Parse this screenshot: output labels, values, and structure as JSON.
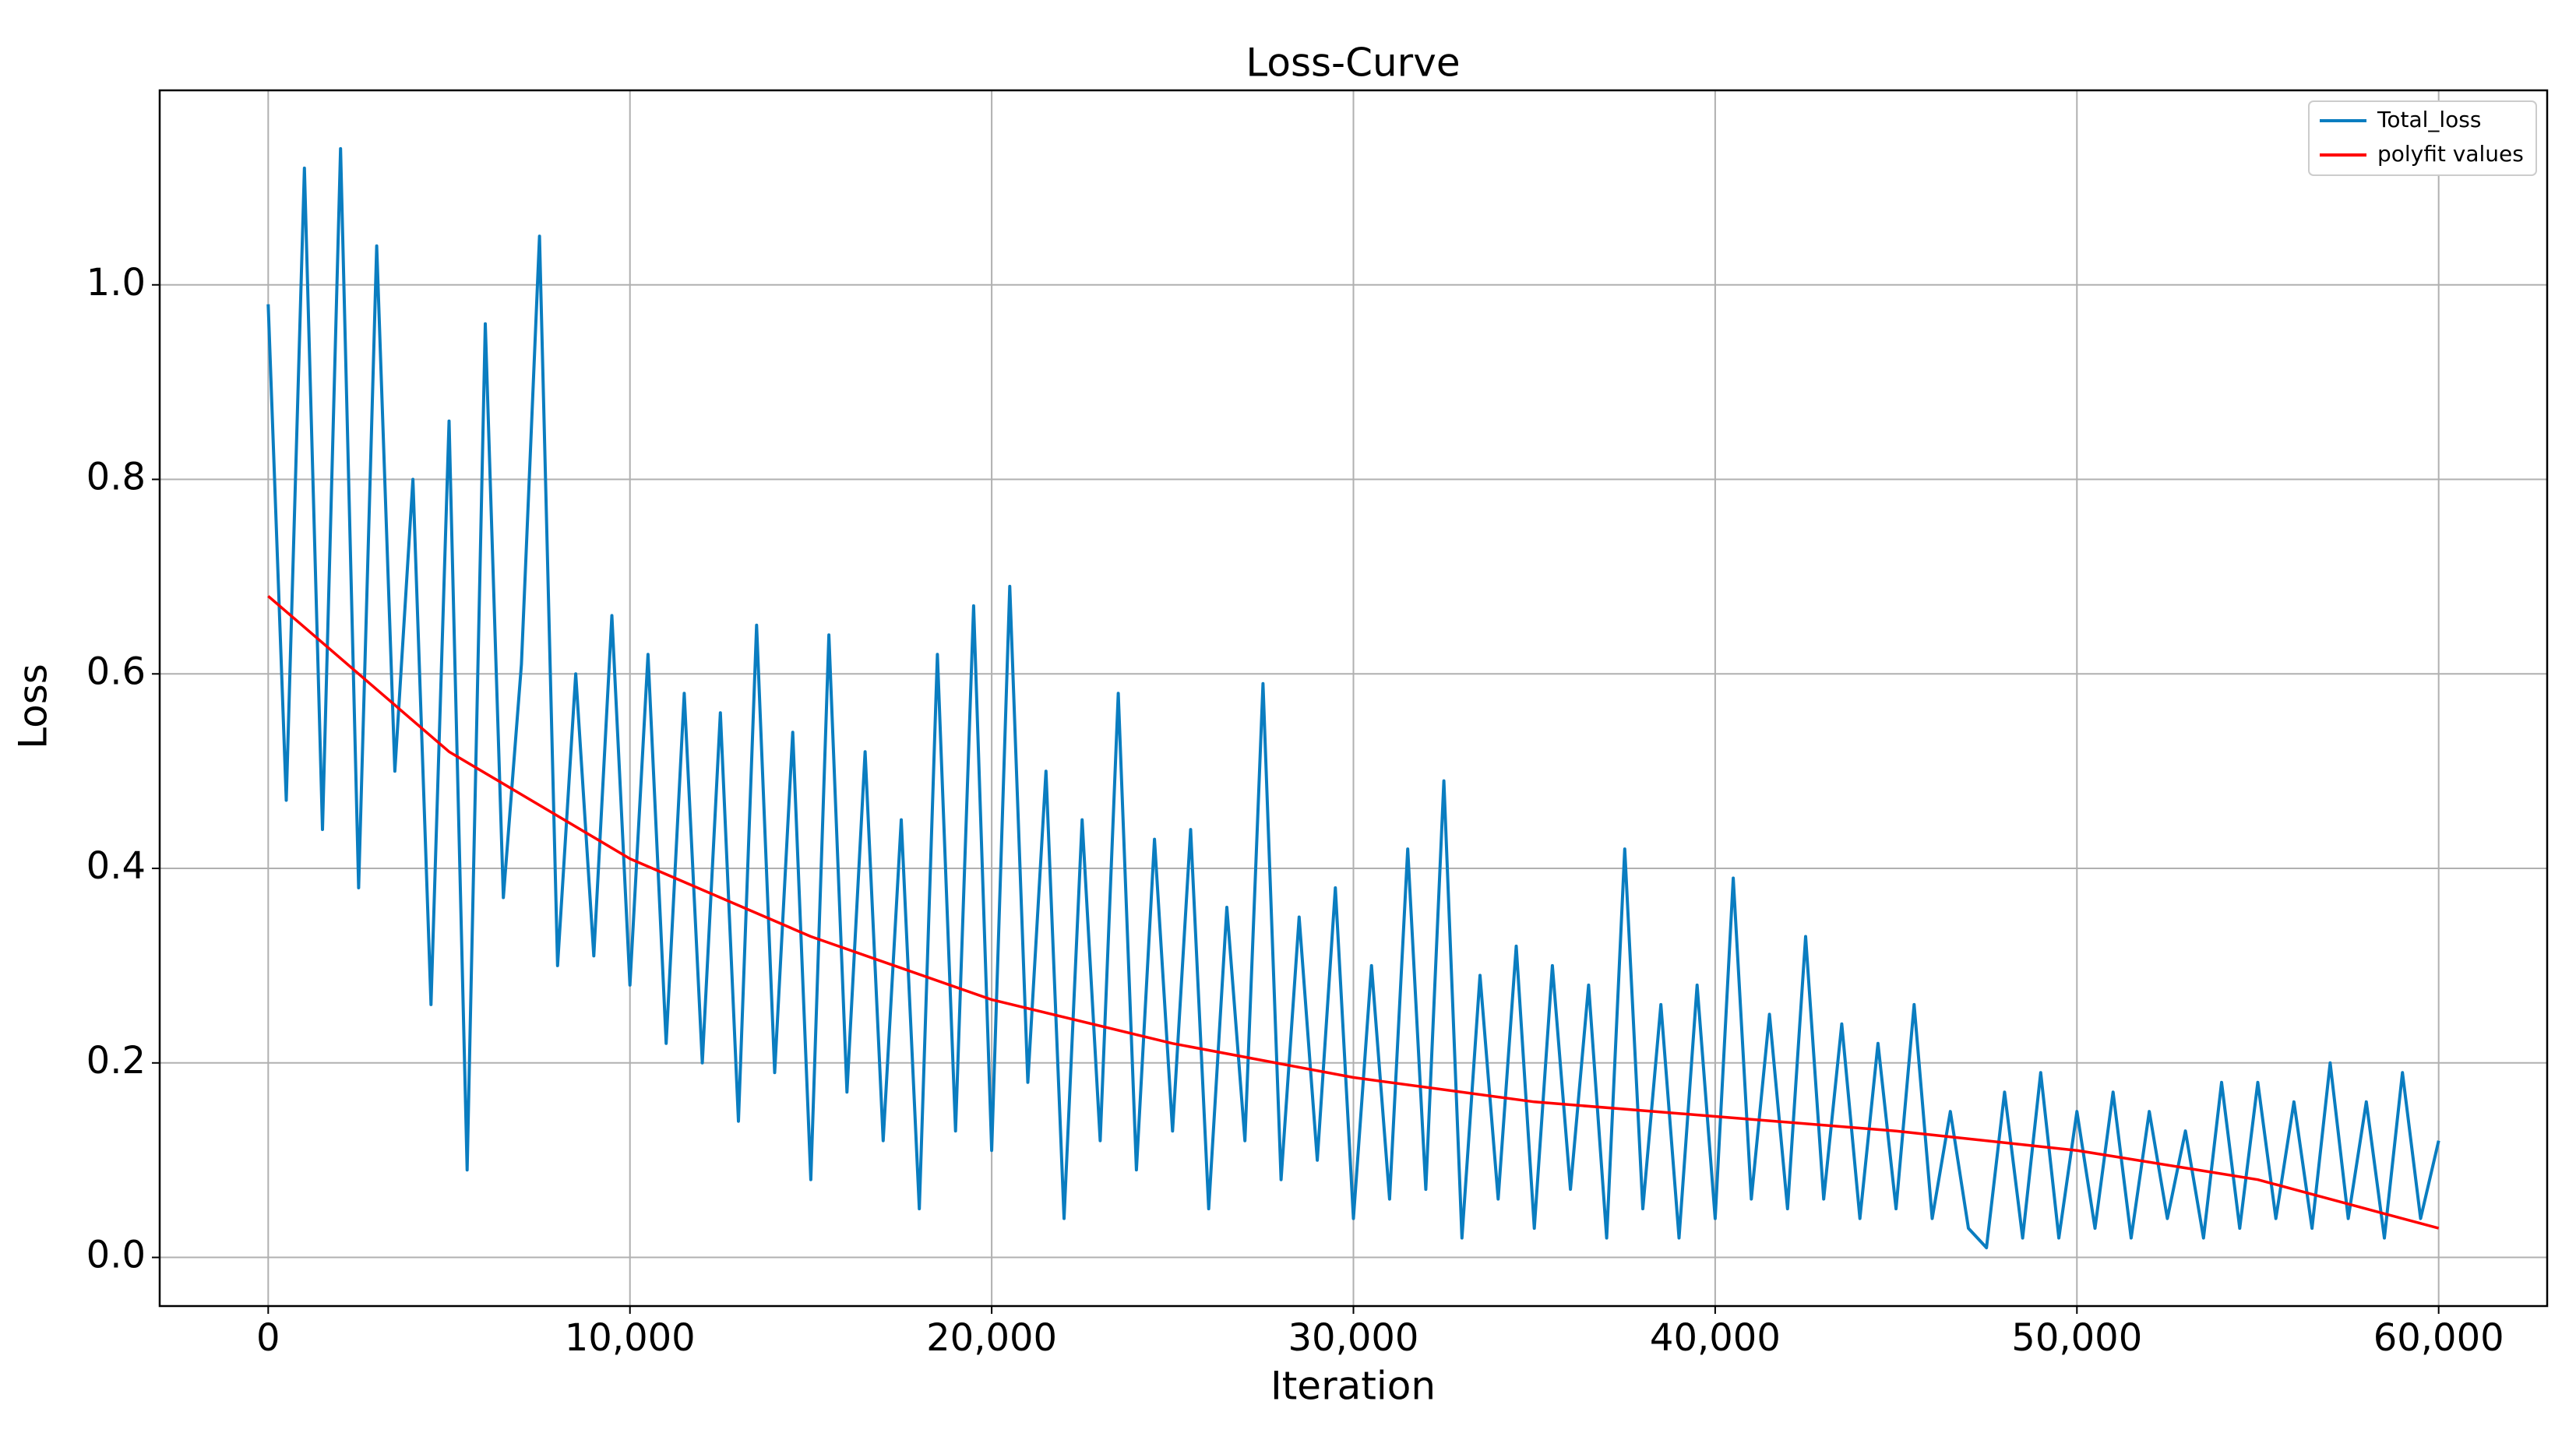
{
  "chart_data": {
    "type": "line",
    "title": "Loss-Curve",
    "xlabel": "Iteration",
    "ylabel": "Loss",
    "xlim": [
      -3000,
      63000
    ],
    "ylim": [
      -0.05,
      1.2
    ],
    "xticks": [
      0,
      {
        "value": 10000,
        "label": "10,000"
      },
      {
        "value": 20000,
        "label": "20,000"
      },
      {
        "value": 30000,
        "label": "30,000"
      },
      {
        "value": 40000,
        "label": "40,000"
      },
      {
        "value": 50000,
        "label": "50,000"
      },
      {
        "value": 60000,
        "label": "60,000"
      }
    ],
    "yticks": [
      {
        "value": 0,
        "label": "0.0"
      },
      0.2,
      0.4,
      0.6,
      0.8,
      {
        "value": 1,
        "label": "1.0"
      }
    ],
    "grid": true,
    "legend": "upper right",
    "series": [
      {
        "name": "Total_loss",
        "color": "#0a7dc0",
        "x": [
          0,
          500,
          1000,
          1500,
          2000,
          2500,
          3000,
          3500,
          4000,
          4500,
          5000,
          5500,
          6000,
          6500,
          7000,
          7500,
          8000,
          8500,
          9000,
          9500,
          10000,
          10500,
          11000,
          11500,
          12000,
          12500,
          13000,
          13500,
          14000,
          14500,
          15000,
          15500,
          16000,
          16500,
          17000,
          17500,
          18000,
          18500,
          19000,
          19500,
          20000,
          20500,
          21000,
          21500,
          22000,
          22500,
          23000,
          23500,
          24000,
          24500,
          25000,
          25500,
          26000,
          26500,
          27000,
          27500,
          28000,
          28500,
          29000,
          29500,
          30000,
          30500,
          31000,
          31500,
          32000,
          32500,
          33000,
          33500,
          34000,
          34500,
          35000,
          35500,
          36000,
          36500,
          37000,
          37500,
          38000,
          38500,
          39000,
          39500,
          40000,
          40500,
          41000,
          41500,
          42000,
          42500,
          43000,
          43500,
          44000,
          44500,
          45000,
          45500,
          46000,
          46500,
          47000,
          47500,
          48000,
          48500,
          49000,
          49500,
          50000,
          50500,
          51000,
          51500,
          52000,
          52500,
          53000,
          53500,
          54000,
          54500,
          55000,
          55500,
          56000,
          56500,
          57000,
          57500,
          58000,
          58500,
          59000,
          59500,
          60000
        ],
        "values": [
          0.98,
          0.47,
          1.12,
          0.44,
          1.14,
          0.38,
          1.04,
          0.5,
          0.8,
          0.26,
          0.86,
          0.09,
          0.96,
          0.37,
          0.61,
          1.05,
          0.3,
          0.6,
          0.31,
          0.66,
          0.28,
          0.62,
          0.22,
          0.58,
          0.2,
          0.56,
          0.14,
          0.65,
          0.19,
          0.54,
          0.08,
          0.64,
          0.17,
          0.52,
          0.12,
          0.45,
          0.05,
          0.62,
          0.13,
          0.67,
          0.11,
          0.69,
          0.18,
          0.5,
          0.04,
          0.45,
          0.12,
          0.58,
          0.09,
          0.43,
          0.13,
          0.44,
          0.05,
          0.36,
          0.12,
          0.59,
          0.08,
          0.35,
          0.1,
          0.38,
          0.04,
          0.3,
          0.06,
          0.42,
          0.07,
          0.49,
          0.02,
          0.29,
          0.06,
          0.32,
          0.03,
          0.3,
          0.07,
          0.28,
          0.02,
          0.42,
          0.05,
          0.26,
          0.02,
          0.28,
          0.04,
          0.39,
          0.06,
          0.25,
          0.05,
          0.33,
          0.06,
          0.24,
          0.04,
          0.22,
          0.05,
          0.26,
          0.04,
          0.15,
          0.03,
          0.01,
          0.17,
          0.02,
          0.19,
          0.02,
          0.15,
          0.03,
          0.17,
          0.02,
          0.15,
          0.04,
          0.13,
          0.02,
          0.18,
          0.03,
          0.18,
          0.04,
          0.16,
          0.03,
          0.2,
          0.04,
          0.16,
          0.02,
          0.19,
          0.04,
          0.12
        ]
      },
      {
        "name": "polyfit values",
        "color": "#ff0000",
        "x": [
          0,
          5000,
          10000,
          15000,
          20000,
          25000,
          30000,
          35000,
          40000,
          45000,
          50000,
          55000,
          60000
        ],
        "values": [
          0.68,
          0.52,
          0.41,
          0.33,
          0.265,
          0.22,
          0.185,
          0.16,
          0.145,
          0.13,
          0.11,
          0.08,
          0.03
        ]
      }
    ]
  }
}
